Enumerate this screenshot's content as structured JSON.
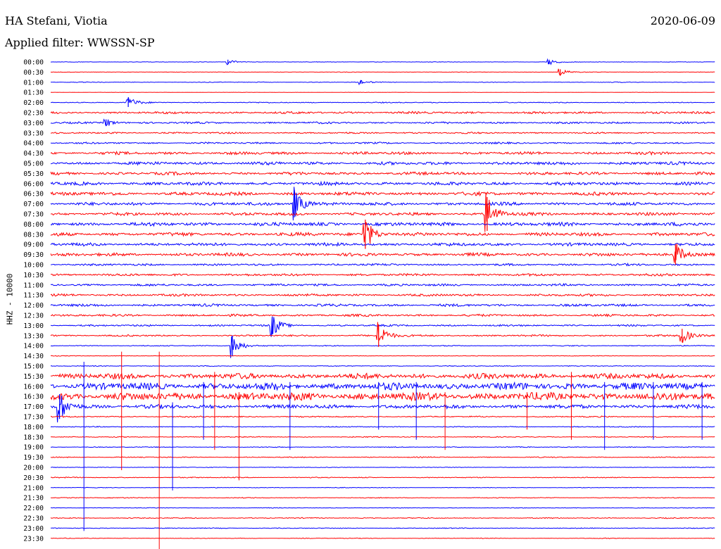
{
  "header": {
    "station": "HA Stefani, Viotia",
    "date": "2020-06-09",
    "filter_label": "Applied filter: WWSSN-SP"
  },
  "chart_data": {
    "type": "line",
    "title": "HA Stefani, Viotia",
    "ylabel": "HHZ - 10000",
    "xlabel": "",
    "grid": false,
    "colors": [
      "#0000ff",
      "#ff0000"
    ],
    "times": [
      "00:00",
      "00:30",
      "01:00",
      "01:30",
      "02:00",
      "02:30",
      "03:00",
      "03:30",
      "04:00",
      "04:30",
      "05:00",
      "05:30",
      "06:00",
      "06:30",
      "07:00",
      "07:30",
      "08:00",
      "08:30",
      "09:00",
      "09:30",
      "10:00",
      "10:30",
      "11:00",
      "11:30",
      "12:00",
      "12:30",
      "13:00",
      "13:30",
      "14:00",
      "14:30",
      "15:00",
      "15:30",
      "16:00",
      "16:30",
      "17:00",
      "17:30",
      "18:00",
      "18:30",
      "19:00",
      "19:30",
      "20:00",
      "20:30",
      "21:00",
      "21:30",
      "22:00",
      "22:30",
      "23:00",
      "23:30"
    ],
    "noise_level": [
      0.3,
      0.3,
      0.4,
      0.2,
      0.6,
      1.4,
      1.2,
      1.0,
      1.1,
      1.8,
      2.0,
      1.9,
      2.1,
      2.2,
      2.0,
      1.9,
      2.3,
      2.2,
      2.0,
      2.0,
      1.3,
      1.5,
      1.4,
      1.5,
      1.6,
      1.4,
      1.1,
      1.1,
      0.6,
      0.4,
      0.5,
      3.5,
      4.5,
      5.0,
      2.5,
      0.8,
      0.6,
      0.6,
      0.5,
      0.6,
      0.4,
      0.6,
      0.4,
      0.5,
      0.4,
      0.6,
      0.5,
      0.4
    ],
    "events": [
      {
        "trace": 0,
        "minute": 8.0,
        "amplitude": 4
      },
      {
        "trace": 0,
        "minute": 22.5,
        "amplitude": 4
      },
      {
        "trace": 1,
        "minute": 23.0,
        "amplitude": 5
      },
      {
        "trace": 2,
        "minute": 14.0,
        "amplitude": 3
      },
      {
        "trace": 4,
        "minute": 3.5,
        "amplitude": 8
      },
      {
        "trace": 6,
        "minute": 2.5,
        "amplitude": 6
      },
      {
        "trace": 14,
        "minute": 11.0,
        "amplitude": 24
      },
      {
        "trace": 15,
        "minute": 19.7,
        "amplitude": 30
      },
      {
        "trace": 17,
        "minute": 14.2,
        "amplitude": 26
      },
      {
        "trace": 19,
        "minute": 28.2,
        "amplitude": 18
      },
      {
        "trace": 26,
        "minute": 10.0,
        "amplitude": 16
      },
      {
        "trace": 27,
        "minute": 14.8,
        "amplitude": 20
      },
      {
        "trace": 27,
        "minute": 28.5,
        "amplitude": 12
      },
      {
        "trace": 28,
        "minute": 8.2,
        "amplitude": 18
      },
      {
        "trace": 34,
        "minute": 0.4,
        "amplitude": 22
      }
    ],
    "spikes": [
      {
        "minute": 1.5,
        "from": 30,
        "to": 46
      },
      {
        "minute": 3.2,
        "from": 29,
        "to": 40
      },
      {
        "minute": 4.9,
        "from": 29,
        "to": 48
      },
      {
        "minute": 5.5,
        "from": 34,
        "to": 42
      },
      {
        "minute": 6.9,
        "from": 32,
        "to": 37
      },
      {
        "minute": 7.4,
        "from": 31,
        "to": 38
      },
      {
        "minute": 8.5,
        "from": 33,
        "to": 41
      },
      {
        "minute": 10.8,
        "from": 32,
        "to": 38
      },
      {
        "minute": 14.8,
        "from": 32,
        "to": 36
      },
      {
        "minute": 16.5,
        "from": 32,
        "to": 37
      },
      {
        "minute": 17.8,
        "from": 33,
        "to": 38
      },
      {
        "minute": 21.5,
        "from": 33,
        "to": 36
      },
      {
        "minute": 23.5,
        "from": 31,
        "to": 37
      },
      {
        "minute": 25.0,
        "from": 32,
        "to": 38
      },
      {
        "minute": 27.2,
        "from": 32,
        "to": 37
      },
      {
        "minute": 29.4,
        "from": 32,
        "to": 37
      }
    ]
  }
}
